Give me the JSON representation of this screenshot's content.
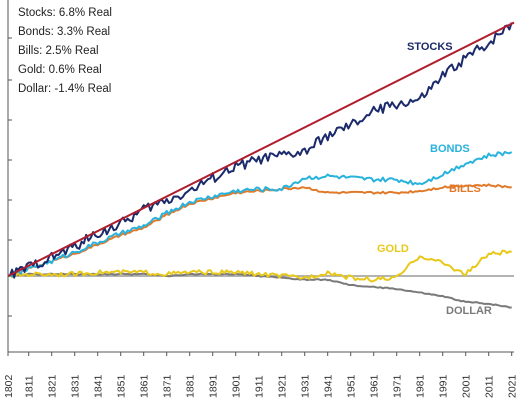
{
  "legend": {
    "stocks": "Stocks: 6.8% Real",
    "bonds": "Bonds: 3.3% Real",
    "bills": "Bills: 2.5% Real",
    "gold": "Gold: 0.6% Real",
    "dollar": "Dollar: -1.4% Real"
  },
  "colors": {
    "stocks": "#1b2a6b",
    "bonds": "#29b3dc",
    "bills": "#e07a2b",
    "gold": "#e8c81a",
    "dollar": "#7a7a7a",
    "trend": "#b01e2e",
    "baseline": "#9a9a9a",
    "axis": "#555555"
  },
  "chart_data": {
    "type": "line",
    "x_ticks": [
      "1802",
      "1811",
      "1821",
      "1831",
      "1841",
      "1851",
      "1861",
      "1871",
      "1881",
      "1891",
      "1901",
      "1911",
      "1921",
      "1931",
      "1941",
      "1951",
      "1961",
      "1971",
      "1981",
      "1991",
      "2001",
      "2011",
      "2021"
    ],
    "xlim": [
      1802,
      2022
    ],
    "ylabel": "",
    "series": [
      {
        "name": "STOCKS",
        "key": "stocks",
        "x": [
          1802,
          1811,
          1821,
          1831,
          1841,
          1851,
          1861,
          1871,
          1881,
          1891,
          1901,
          1911,
          1921,
          1931,
          1941,
          1951,
          1961,
          1971,
          1981,
          1991,
          2001,
          2011,
          2021
        ],
        "y": [
          0.0,
          0.5,
          1.0,
          1.6,
          2.3,
          2.8,
          3.6,
          4.1,
          4.6,
          5.3,
          5.9,
          6.3,
          6.5,
          6.7,
          7.6,
          8.1,
          8.9,
          9.3,
          9.5,
          10.8,
          11.8,
          12.6,
          13.7
        ]
      },
      {
        "name": "BONDS",
        "key": "bonds",
        "x": [
          1802,
          1811,
          1821,
          1831,
          1841,
          1851,
          1861,
          1871,
          1881,
          1891,
          1901,
          1911,
          1921,
          1931,
          1941,
          1951,
          1961,
          1971,
          1981,
          1991,
          2001,
          2011,
          2021
        ],
        "y": [
          0.0,
          0.4,
          0.8,
          1.3,
          1.8,
          2.3,
          2.7,
          3.4,
          4.0,
          4.3,
          4.6,
          4.7,
          4.7,
          5.3,
          5.4,
          5.3,
          5.2,
          5.2,
          5.0,
          5.5,
          6.1,
          6.5,
          6.7
        ]
      },
      {
        "name": "BILLS",
        "key": "bills",
        "x": [
          1802,
          1811,
          1821,
          1831,
          1841,
          1851,
          1861,
          1871,
          1881,
          1891,
          1901,
          1911,
          1921,
          1931,
          1941,
          1951,
          1961,
          1971,
          1981,
          1991,
          2001,
          2011,
          2021
        ],
        "y": [
          0.0,
          0.4,
          0.8,
          1.2,
          1.7,
          2.2,
          2.6,
          3.3,
          3.9,
          4.2,
          4.5,
          4.6,
          4.7,
          4.8,
          4.5,
          4.5,
          4.5,
          4.5,
          4.6,
          4.8,
          4.9,
          4.9,
          4.8
        ]
      },
      {
        "name": "GOLD",
        "key": "gold",
        "x": [
          1802,
          1811,
          1821,
          1831,
          1841,
          1851,
          1861,
          1871,
          1881,
          1891,
          1901,
          1911,
          1921,
          1931,
          1941,
          1951,
          1961,
          1971,
          1981,
          1991,
          2001,
          2011,
          2021
        ],
        "y": [
          0.0,
          0.1,
          0.1,
          0.1,
          0.2,
          0.2,
          0.2,
          0.1,
          0.2,
          0.2,
          0.2,
          0.1,
          0.0,
          -0.1,
          0.2,
          -0.1,
          -0.2,
          -0.1,
          1.1,
          0.7,
          0.1,
          1.2,
          1.3
        ]
      },
      {
        "name": "DOLLAR",
        "key": "dollar",
        "x": [
          1802,
          1811,
          1821,
          1831,
          1841,
          1851,
          1861,
          1871,
          1881,
          1891,
          1901,
          1911,
          1921,
          1931,
          1941,
          1951,
          1961,
          1971,
          1981,
          1991,
          2001,
          2011,
          2021
        ],
        "y": [
          0.0,
          0.1,
          0.1,
          0.1,
          0.1,
          0.1,
          0.1,
          0.0,
          0.1,
          0.1,
          0.1,
          0.0,
          -0.1,
          -0.2,
          -0.2,
          -0.5,
          -0.6,
          -0.7,
          -0.9,
          -1.1,
          -1.4,
          -1.5,
          -1.7
        ]
      }
    ],
    "trend_line": {
      "key": "trend",
      "x": [
        1802,
        2022
      ],
      "y": [
        0.0,
        13.7
      ]
    }
  }
}
